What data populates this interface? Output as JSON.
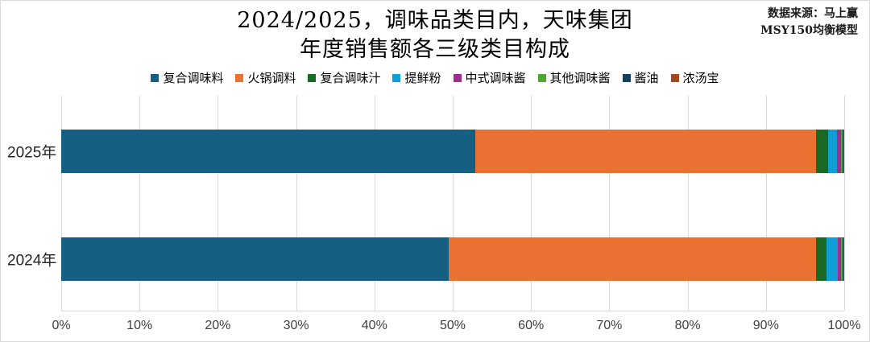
{
  "page": {
    "background": "#FFFFFF",
    "border_color": "#D9D9D9",
    "gridline_color": "#D9D9D9"
  },
  "header": {
    "title_line1": "2024/2025，调味品类目内，天味集团",
    "title_line2": "年度销售额各三级类目构成",
    "source_line1": "数据来源：马上赢",
    "source_line2": "MSY150均衡模型"
  },
  "chart_data": {
    "type": "bar",
    "orientation": "horizontal",
    "stacked": true,
    "title": "2024/2025，调味品类目内，天味集团 年度销售额各三级类目构成",
    "categories": [
      "2025年",
      "2024年"
    ],
    "series": [
      {
        "name": "复合调味料",
        "color": "#156082",
        "values": [
          52.9,
          49.5
        ]
      },
      {
        "name": "火锅调料",
        "color": "#E97132",
        "values": [
          43.5,
          46.9
        ]
      },
      {
        "name": "复合调味汁",
        "color": "#196B24",
        "values": [
          1.5,
          1.3
        ]
      },
      {
        "name": "提鲜粉",
        "color": "#0F9ED5",
        "values": [
          1.2,
          1.5
        ]
      },
      {
        "name": "中式调味酱",
        "color": "#A02B93",
        "values": [
          0.5,
          0.4
        ]
      },
      {
        "name": "其他调味酱",
        "color": "#4EA72E",
        "values": [
          0.2,
          0.2
        ]
      },
      {
        "name": "酱油",
        "color": "#12405F",
        "values": [
          0.1,
          0.1
        ]
      },
      {
        "name": "浓汤宝",
        "color": "#A24A1E",
        "values": [
          0.1,
          0.1
        ]
      }
    ],
    "x_ticks": [
      "0%",
      "10%",
      "20%",
      "30%",
      "40%",
      "50%",
      "60%",
      "70%",
      "80%",
      "90%",
      "100%"
    ],
    "xlim": [
      0,
      100
    ],
    "grid": true,
    "legend_position": "top",
    "unit": "percent"
  }
}
